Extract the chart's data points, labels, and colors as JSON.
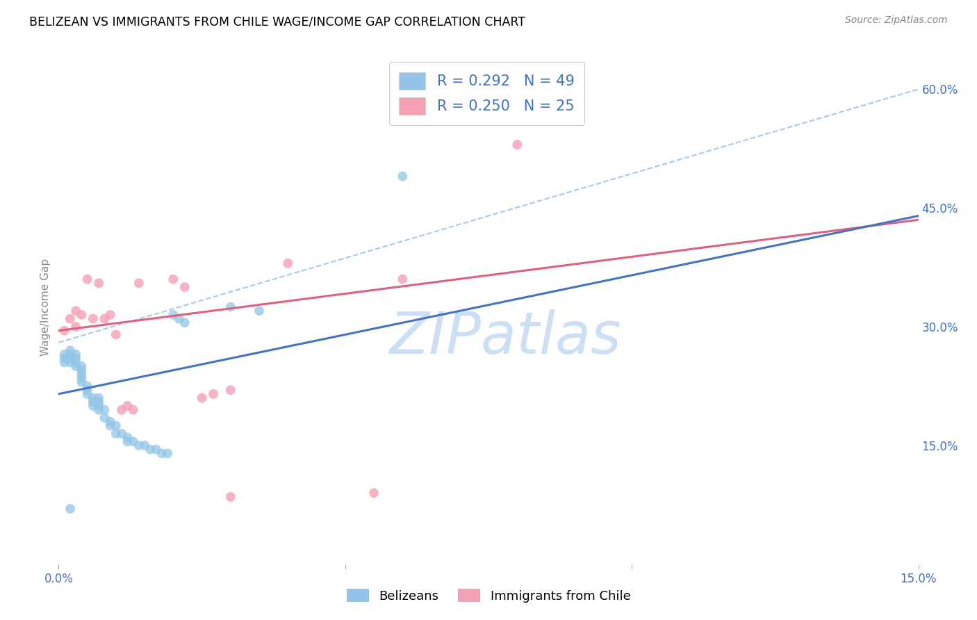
{
  "title": "BELIZEAN VS IMMIGRANTS FROM CHILE WAGE/INCOME GAP CORRELATION CHART",
  "source": "Source: ZipAtlas.com",
  "ylabel": "Wage/Income Gap",
  "xlim": [
    0.0,
    0.15
  ],
  "ylim": [
    0.0,
    0.65
  ],
  "xtick_positions": [
    0.0,
    0.05,
    0.1,
    0.15
  ],
  "xtick_labels": [
    "0.0%",
    "",
    "",
    "15.0%"
  ],
  "ytick_right_labels": [
    "60.0%",
    "45.0%",
    "30.0%",
    "15.0%"
  ],
  "ytick_right_values": [
    0.6,
    0.45,
    0.3,
    0.15
  ],
  "belizean_color": "#92c5e8",
  "chile_color": "#f4a0b5",
  "belizean_line_color": "#4472c4",
  "chile_line_color": "#e06080",
  "dashed_line_color": "#aac8e8",
  "belizean_R": 0.292,
  "belizean_N": 49,
  "chile_R": 0.25,
  "chile_N": 25,
  "belizean_line_x0": 0.0,
  "belizean_line_y0": 0.215,
  "belizean_line_x1": 0.15,
  "belizean_line_y1": 0.44,
  "chile_line_x0": 0.0,
  "chile_line_y0": 0.295,
  "chile_line_x1": 0.15,
  "chile_line_y1": 0.435,
  "dashed_line_x0": 0.0,
  "dashed_line_y0": 0.28,
  "dashed_line_x1": 0.15,
  "dashed_line_y1": 0.6,
  "belizean_scatter_x": [
    0.001,
    0.001,
    0.001,
    0.002,
    0.002,
    0.002,
    0.002,
    0.003,
    0.003,
    0.003,
    0.003,
    0.004,
    0.004,
    0.004,
    0.004,
    0.004,
    0.005,
    0.005,
    0.005,
    0.006,
    0.006,
    0.006,
    0.007,
    0.007,
    0.007,
    0.007,
    0.008,
    0.008,
    0.009,
    0.009,
    0.01,
    0.01,
    0.011,
    0.012,
    0.012,
    0.013,
    0.014,
    0.015,
    0.016,
    0.017,
    0.018,
    0.019,
    0.02,
    0.021,
    0.022,
    0.03,
    0.035,
    0.06,
    0.002
  ],
  "belizean_scatter_y": [
    0.265,
    0.26,
    0.255,
    0.27,
    0.265,
    0.26,
    0.255,
    0.265,
    0.26,
    0.255,
    0.25,
    0.25,
    0.245,
    0.24,
    0.235,
    0.23,
    0.225,
    0.22,
    0.215,
    0.21,
    0.205,
    0.2,
    0.21,
    0.205,
    0.2,
    0.195,
    0.195,
    0.185,
    0.18,
    0.175,
    0.175,
    0.165,
    0.165,
    0.16,
    0.155,
    0.155,
    0.15,
    0.15,
    0.145,
    0.145,
    0.14,
    0.14,
    0.315,
    0.31,
    0.305,
    0.325,
    0.32,
    0.49,
    0.07
  ],
  "chile_scatter_x": [
    0.001,
    0.002,
    0.003,
    0.003,
    0.004,
    0.005,
    0.006,
    0.007,
    0.008,
    0.009,
    0.01,
    0.011,
    0.012,
    0.013,
    0.014,
    0.02,
    0.022,
    0.025,
    0.027,
    0.03,
    0.03,
    0.04,
    0.055,
    0.06,
    0.08
  ],
  "chile_scatter_y": [
    0.295,
    0.31,
    0.32,
    0.3,
    0.315,
    0.36,
    0.31,
    0.355,
    0.31,
    0.315,
    0.29,
    0.195,
    0.2,
    0.195,
    0.355,
    0.36,
    0.35,
    0.21,
    0.215,
    0.22,
    0.085,
    0.38,
    0.09,
    0.36,
    0.53
  ],
  "watermark": "ZIPatlas",
  "watermark_color": "#ccdff5",
  "background_color": "#ffffff",
  "grid_color": "#d0d0d0"
}
